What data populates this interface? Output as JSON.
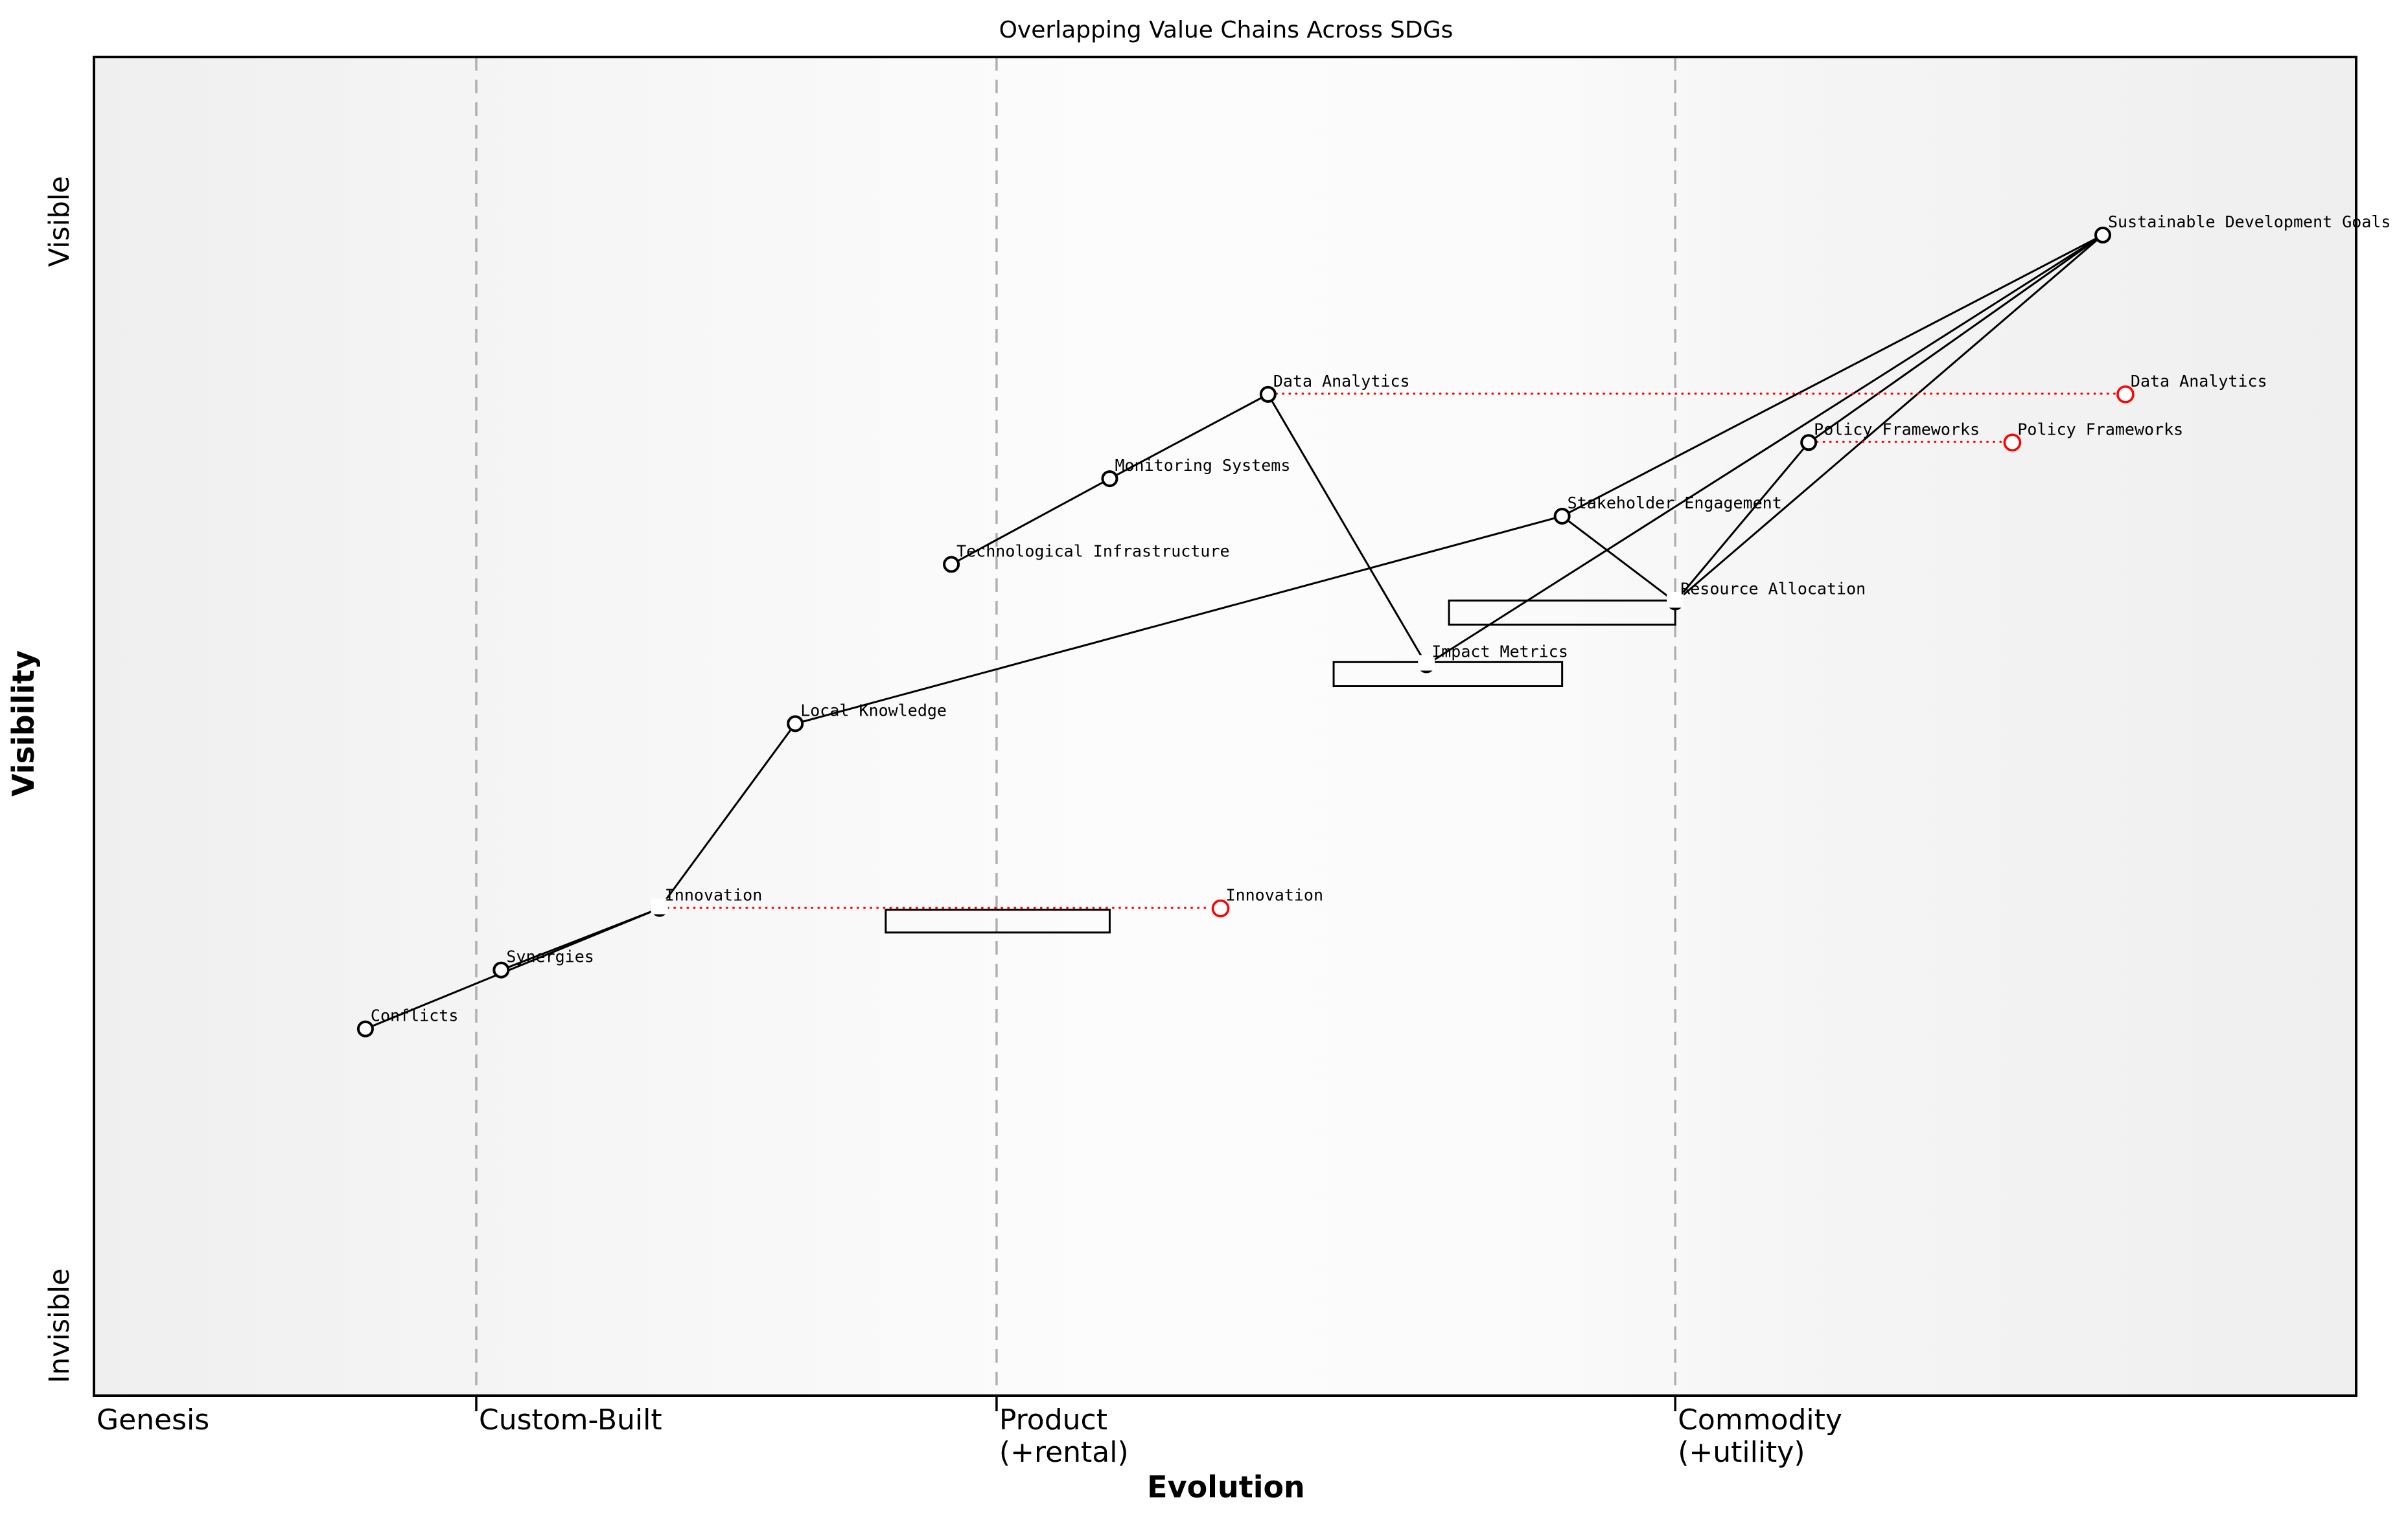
{
  "chart_data": {
    "type": "wardley-map",
    "title": "Overlapping Value Chains Across SDGs",
    "xlabel": "Evolution",
    "ylabel": "Visibility",
    "y_end_labels": [
      "Invisible",
      "Visible"
    ],
    "x_axis_ranges": "evolution 0-1, visibility 0-1",
    "stage_boundaries_x": [
      0.169,
      0.399,
      0.699
    ],
    "x_stage_labels": [
      {
        "lines": [
          "Genesis"
        ],
        "x": 0.0
      },
      {
        "lines": [
          "Custom-Built"
        ],
        "x": 0.169
      },
      {
        "lines": [
          "Product",
          "(+rental)"
        ],
        "x": 0.399
      },
      {
        "lines": [
          "Commodity",
          "(+utility)"
        ],
        "x": 0.699
      }
    ],
    "colors": {
      "node_stroke": "#000000",
      "evolved_stroke": "#ff0000",
      "movement_line": "#ff0000",
      "boundary_line": "#b0b0b0",
      "background_left": "#efefef",
      "background_mid": "#fcfcfc",
      "background_right": "#efefef"
    },
    "nodes": [
      {
        "id": "sdg",
        "label": "Sustainable Development Goals",
        "x": 0.888,
        "y": 0.867,
        "style": "circle"
      },
      {
        "id": "data_analytics",
        "label": "Data Analytics",
        "x": 0.519,
        "y": 0.748,
        "style": "circle"
      },
      {
        "id": "data_analytics_evolved",
        "label": "Data Analytics",
        "x": 0.898,
        "y": 0.748,
        "style": "evolved"
      },
      {
        "id": "policy_frameworks",
        "label": "Policy Frameworks",
        "x": 0.758,
        "y": 0.712,
        "style": "circle"
      },
      {
        "id": "policy_frameworks_evolved",
        "label": "Policy Frameworks",
        "x": 0.848,
        "y": 0.712,
        "style": "evolved"
      },
      {
        "id": "monitoring_systems",
        "label": "Monitoring Systems",
        "x": 0.449,
        "y": 0.685,
        "style": "circle"
      },
      {
        "id": "stakeholder_engagement",
        "label": "Stakeholder Engagement",
        "x": 0.649,
        "y": 0.657,
        "style": "circle"
      },
      {
        "id": "technological_infrastructure",
        "label": "Technological Infrastructure",
        "x": 0.379,
        "y": 0.621,
        "style": "circle"
      },
      {
        "id": "resource_allocation",
        "label": "Resource Allocation",
        "x": 0.699,
        "y": 0.593,
        "style": "circle-obscured"
      },
      {
        "id": "impact_metrics",
        "label": "Impact Metrics",
        "x": 0.589,
        "y": 0.546,
        "style": "circle-obscured"
      },
      {
        "id": "local_knowledge",
        "label": "Local Knowledge",
        "x": 0.31,
        "y": 0.502,
        "style": "circle"
      },
      {
        "id": "innovation",
        "label": "Innovation",
        "x": 0.25,
        "y": 0.364,
        "style": "circle-obscured"
      },
      {
        "id": "innovation_evolved",
        "label": "Innovation",
        "x": 0.498,
        "y": 0.364,
        "style": "evolved"
      },
      {
        "id": "synergies",
        "label": "Synergies",
        "x": 0.18,
        "y": 0.318,
        "style": "circle"
      },
      {
        "id": "conflicts",
        "label": "Conflicts",
        "x": 0.12,
        "y": 0.274,
        "style": "circle"
      }
    ],
    "edges": [
      [
        "sdg",
        "policy_frameworks"
      ],
      [
        "sdg",
        "stakeholder_engagement"
      ],
      [
        "sdg",
        "resource_allocation"
      ],
      [
        "sdg",
        "impact_metrics"
      ],
      [
        "data_analytics",
        "monitoring_systems"
      ],
      [
        "monitoring_systems",
        "technological_infrastructure"
      ],
      [
        "data_analytics",
        "impact_metrics"
      ],
      [
        "stakeholder_engagement",
        "local_knowledge"
      ],
      [
        "stakeholder_engagement",
        "resource_allocation"
      ],
      [
        "resource_allocation",
        "policy_frameworks"
      ],
      [
        "local_knowledge",
        "innovation"
      ],
      [
        "innovation",
        "synergies"
      ],
      [
        "innovation",
        "conflicts"
      ]
    ],
    "movements": [
      {
        "from": "data_analytics",
        "to": "data_analytics_evolved"
      },
      {
        "from": "policy_frameworks",
        "to": "policy_frameworks_evolved"
      },
      {
        "from": "innovation",
        "to": "innovation_evolved"
      }
    ],
    "boxes": [
      {
        "near": "innovation",
        "x1": 0.35,
        "x2": 0.449,
        "y_top": 0.363,
        "y_bottom": 0.346
      },
      {
        "near": "resource_allocation",
        "x1": 0.599,
        "x2": 0.699,
        "y_top": 0.594,
        "y_bottom": 0.576
      },
      {
        "near": "impact_metrics",
        "x1": 0.548,
        "x2": 0.649,
        "y_top": 0.548,
        "y_bottom": 0.53
      }
    ]
  }
}
